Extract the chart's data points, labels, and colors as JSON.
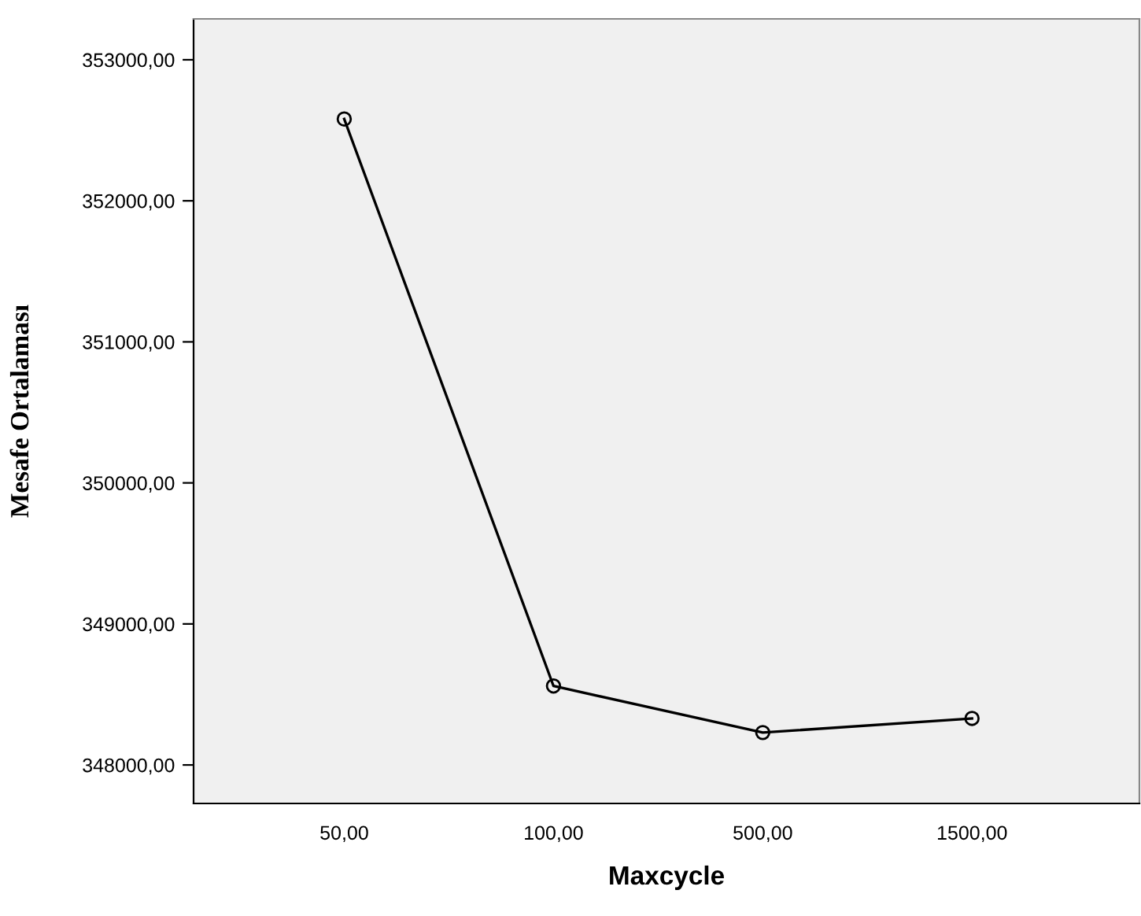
{
  "chart_data": {
    "type": "line",
    "xlabel": "Maxcycle",
    "ylabel": "Mesafe Ortalaması",
    "categories": [
      "50,00",
      "100,00",
      "500,00",
      "1500,00"
    ],
    "series": [
      {
        "color": "#000000",
        "values": [
          352580,
          348560,
          348230,
          348330
        ]
      }
    ],
    "ylim": [
      347727,
      353290
    ],
    "yticks": [
      {
        "value": 348000,
        "label": "348000,00"
      },
      {
        "value": 349000,
        "label": "349000,00"
      },
      {
        "value": 350000,
        "label": "350000,00"
      },
      {
        "value": 351000,
        "label": "351000,00"
      },
      {
        "value": 352000,
        "label": "352000,00"
      },
      {
        "value": 353000,
        "label": "353000,00"
      }
    ],
    "grid": false,
    "marker": "circle",
    "line_style": "solid"
  }
}
